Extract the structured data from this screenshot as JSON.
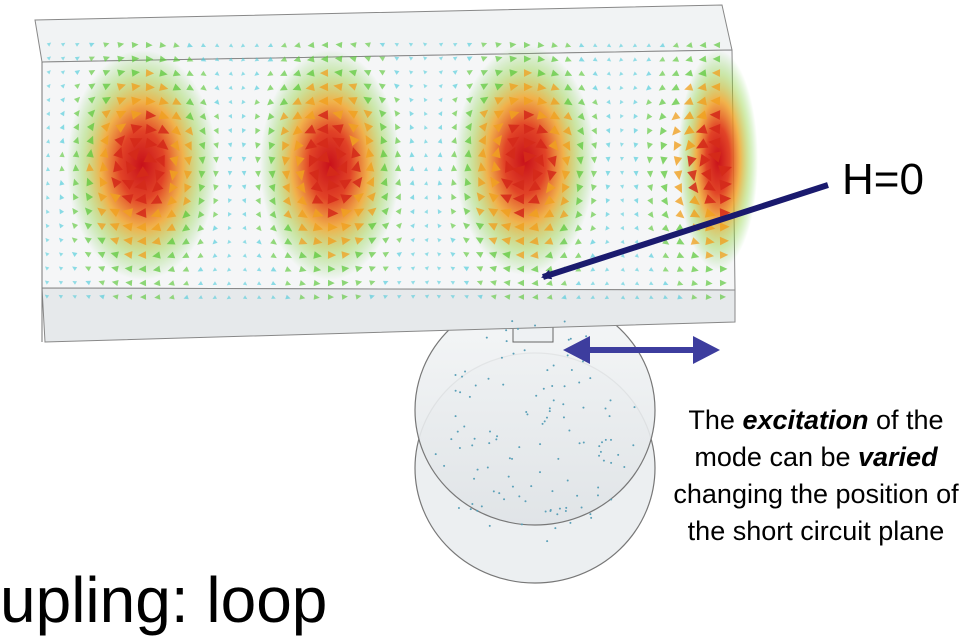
{
  "annotation": {
    "h_label": "H=0"
  },
  "caption": {
    "parts": [
      {
        "text": "The ",
        "emph": false
      },
      {
        "text": "excitation",
        "emph": true
      },
      {
        "text": " of the mode can be ",
        "emph": false
      },
      {
        "text": "varied",
        "emph": true
      },
      {
        "text": " changing the position of the short circuit plane",
        "emph": false
      }
    ]
  },
  "slide_title_fragment": "upling: loop",
  "colors": {
    "arrow_primary": "#1a1a6e",
    "double_arrow": "#3d3d9e",
    "field_high": "#d42a1a",
    "field_mid": "#f0a020",
    "field_low": "#5cc83a",
    "field_weak": "#40c8d8",
    "metal": "#e8ecef"
  },
  "field_hotspots": [
    {
      "name": "hotspot-1"
    },
    {
      "name": "hotspot-2"
    },
    {
      "name": "hotspot-3"
    },
    {
      "name": "hotspot-4-partial"
    }
  ]
}
